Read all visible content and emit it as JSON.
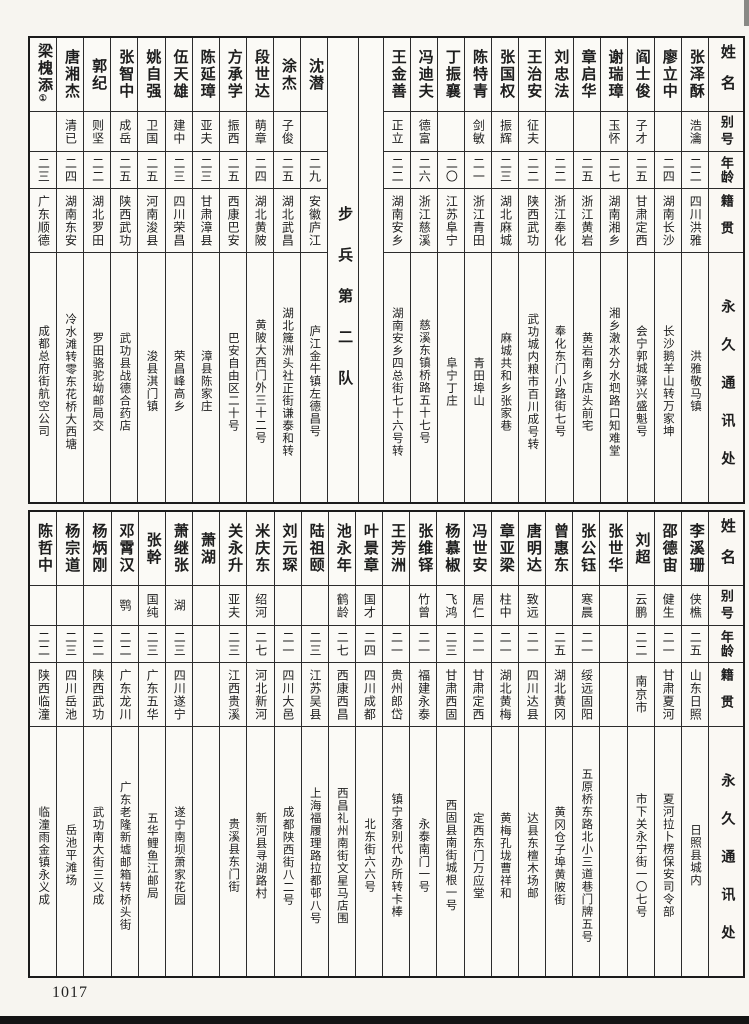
{
  "page": {
    "number": "1017"
  },
  "header_labels": {
    "name": "姓名",
    "alias": "别号",
    "age": "年龄",
    "native": "籍贯",
    "address": "永久通讯处"
  },
  "section_title": "步兵第二队",
  "tables": [
    {
      "id": "top",
      "columns": [
        {
          "type": "header"
        },
        {
          "type": "person",
          "name": "张泽酥",
          "alias": "浩瀹",
          "age": "二二",
          "native": "四川洪雅",
          "address": "洪雅敬马镇"
        },
        {
          "type": "person",
          "name": "廖立中",
          "alias": "",
          "age": "二四",
          "native": "湖南长沙",
          "address": "长沙鹅羊山转万家坤"
        },
        {
          "type": "person",
          "name": "阎士俊",
          "alias": "子才",
          "age": "二五",
          "native": "甘肃定西",
          "address": "会宁郭城驿兴盛魁号"
        },
        {
          "type": "person",
          "name": "谢瑞璋",
          "alias": "玉怀",
          "age": "二七",
          "native": "湖南湘乡",
          "address": "湘乡潄水分水垇路口知难堂"
        },
        {
          "type": "person",
          "name": "章启华",
          "alias": "",
          "age": "二五",
          "native": "浙江黄岩",
          "address": "黄岩南乡店头前宅"
        },
        {
          "type": "person",
          "name": "刘忠法",
          "alias": "",
          "age": "二二",
          "native": "浙江奉化",
          "address": "奉化东门小路街七号"
        },
        {
          "type": "person",
          "name": "王治安",
          "alias": "征夫",
          "age": "二二",
          "native": "陕西武功",
          "address": "武功城内粮市百川成号转"
        },
        {
          "type": "person",
          "name": "张国权",
          "alias": "振辉",
          "age": "二三",
          "native": "湖北麻城",
          "address": "麻城共和乡张家巷"
        },
        {
          "type": "person",
          "name": "陈特青",
          "alias": "剑敏",
          "age": "二一",
          "native": "浙江青田",
          "address": "青田埠山"
        },
        {
          "type": "person",
          "name": "丁振襄",
          "alias": "",
          "age": "二〇",
          "native": "江苏阜宁",
          "address": "阜宁丁庄"
        },
        {
          "type": "person",
          "name": "冯迪夫",
          "alias": "德富",
          "age": "二六",
          "native": "浙江慈溪",
          "address": "慈溪东镇桥路五十七号"
        },
        {
          "type": "person",
          "name": "王金善",
          "alias": "正立",
          "age": "二二",
          "native": "湖南安乡",
          "address": "湖南安乡四总街七十六号转"
        },
        {
          "type": "blank"
        },
        {
          "type": "section"
        },
        {
          "type": "person",
          "name": "沈潜",
          "alias": "",
          "age": "二九",
          "native": "安徽庐江",
          "address": "庐江金牛镇左德昌号"
        },
        {
          "type": "person",
          "name": "涂杰",
          "alias": "子俊",
          "age": "二五",
          "native": "湖北武昌",
          "address": "湖北簰洲头社正街谦泰和转"
        },
        {
          "type": "person",
          "name": "段世达",
          "alias": "萌章",
          "age": "二四",
          "native": "湖北黄陂",
          "address": "黄陂大西门外三十二号"
        },
        {
          "type": "person",
          "name": "方承学",
          "alias": "振西",
          "age": "二五",
          "native": "西康巴安",
          "address": "巴安自由区二十号"
        },
        {
          "type": "person",
          "name": "陈延璋",
          "alias": "亚夫",
          "age": "二三",
          "native": "甘肃漳县",
          "address": "漳县陈家庄"
        },
        {
          "type": "person",
          "name": "伍天雄",
          "alias": "建中",
          "age": "二三",
          "native": "四川荣昌",
          "address": "荣昌峰高乡"
        },
        {
          "type": "person",
          "name": "姚自强",
          "alias": "卫国",
          "age": "二五",
          "native": "河南浚县",
          "address": "浚县淇门镇"
        },
        {
          "type": "person",
          "name": "张智中",
          "alias": "成岳",
          "age": "二五",
          "native": "陕西武功",
          "address": "武功县战德合药店"
        },
        {
          "type": "person",
          "name": "郭纪",
          "alias": "则坚",
          "age": "二二",
          "native": "湖北罗田",
          "address": "罗田骆驼坳邮局交"
        },
        {
          "type": "person",
          "name": "唐湘杰",
          "alias": "清已",
          "age": "二四",
          "native": "湖南东安",
          "address": "冷水滩转零东花桥大西塘"
        },
        {
          "type": "person",
          "name": "梁槐添",
          "note": "①",
          "alias": "",
          "age": "二三",
          "native": "广东顺德",
          "address": "成都总府街航空公司"
        }
      ]
    },
    {
      "id": "bottom",
      "columns": [
        {
          "type": "header"
        },
        {
          "type": "person",
          "name": "李溪珊",
          "alias": "侠樵",
          "age": "二五",
          "native": "山东日照",
          "address": "日照县城内"
        },
        {
          "type": "person",
          "name": "邵德宙",
          "alias": "健生",
          "age": "二一",
          "native": "甘肃夏河",
          "address": "夏河拉卜楞保安司令部"
        },
        {
          "type": "person",
          "name": "刘超",
          "alias": "云鹏",
          "age": "二二",
          "native": "南京市",
          "address": "市下关永宁街一〇七号"
        },
        {
          "type": "person",
          "name": "张世华",
          "alias": "",
          "age": "",
          "native": "",
          "address": ""
        },
        {
          "type": "person",
          "name": "张公钰",
          "alias": "寒晨",
          "age": "二一",
          "native": "绥远固阳",
          "address": "五原桥东路北小三道巷门牌五号"
        },
        {
          "type": "person",
          "name": "曾惠东",
          "alias": "",
          "age": "二五",
          "native": "湖北黄冈",
          "address": "黄冈仓子埠黄陂街"
        },
        {
          "type": "person",
          "name": "唐明达",
          "alias": "致远",
          "age": "二一",
          "native": "四川达县",
          "address": "达县东檀木场邮"
        },
        {
          "type": "person",
          "name": "章亚梁",
          "alias": "柱中",
          "age": "二一",
          "native": "湖北黄梅",
          "address": "黄梅孔垅曹祥和"
        },
        {
          "type": "person",
          "name": "冯世安",
          "alias": "居仁",
          "age": "二一",
          "native": "甘肃定西",
          "address": "定西东门万应堂"
        },
        {
          "type": "person",
          "name": "杨慕椒",
          "alias": "飞鸿",
          "age": "二三",
          "native": "甘肃西固",
          "address": "西固县南街城根一号"
        },
        {
          "type": "person",
          "name": "张维铎",
          "alias": "竹曾",
          "age": "二一",
          "native": "福建永泰",
          "address": "永泰南门一号"
        },
        {
          "type": "person",
          "name": "王芳洲",
          "alias": "",
          "age": "二一",
          "native": "贵州郎岱",
          "address": "镇宁落别代办所转卡棒"
        },
        {
          "type": "person",
          "name": "叶景章",
          "alias": "国才",
          "age": "二四",
          "native": "四川成都",
          "address": "北东街六六号"
        },
        {
          "type": "person",
          "name": "池永年",
          "alias": "鹤龄",
          "age": "二七",
          "native": "西康西昌",
          "address": "西昌礼州南街文星马店围"
        },
        {
          "type": "person",
          "name": "陆祖颐",
          "alias": "",
          "age": "二三",
          "native": "江苏吴县",
          "address": "上海福履理路拉都邨八号"
        },
        {
          "type": "person",
          "name": "刘元琛",
          "alias": "",
          "age": "二一",
          "native": "四川大邑",
          "address": "成都陕西街八二号"
        },
        {
          "type": "person",
          "name": "米庆东",
          "alias": "绍河",
          "age": "二七",
          "native": "河北新河",
          "address": "新河县寻湖路村"
        },
        {
          "type": "person",
          "name": "关永升",
          "alias": "亚夫",
          "age": "二三",
          "native": "江西贵溪",
          "address": "贵溪县东门街"
        },
        {
          "type": "person",
          "name": "萧湖",
          "alias": "",
          "age": "",
          "native": "",
          "address": ""
        },
        {
          "type": "person",
          "name": "萧继张",
          "alias": "湖",
          "age": "二三",
          "native": "四川遂宁",
          "address": "遂宁南坝萧家花园"
        },
        {
          "type": "person",
          "name": "张幹",
          "alias": "国纯",
          "age": "二三",
          "native": "广东五华",
          "address": "五华鲤鱼江邮局"
        },
        {
          "type": "person",
          "name": "邓霄汉",
          "alias": "鹗",
          "age": "二二",
          "native": "广东龙川",
          "address": "广东老隆新墟邮箱转桥头街"
        },
        {
          "type": "person",
          "name": "杨炳刚",
          "alias": "",
          "age": "二二",
          "native": "陕西武功",
          "address": "武功南大街三义成"
        },
        {
          "type": "person",
          "name": "杨宗道",
          "alias": "",
          "age": "二三",
          "native": "四川岳池",
          "address": "岳池平滩场"
        },
        {
          "type": "person",
          "name": "陈哲中",
          "alias": "",
          "age": "二二",
          "native": "陕西临潼",
          "address": "临潼雨金镇永义成"
        }
      ]
    }
  ]
}
